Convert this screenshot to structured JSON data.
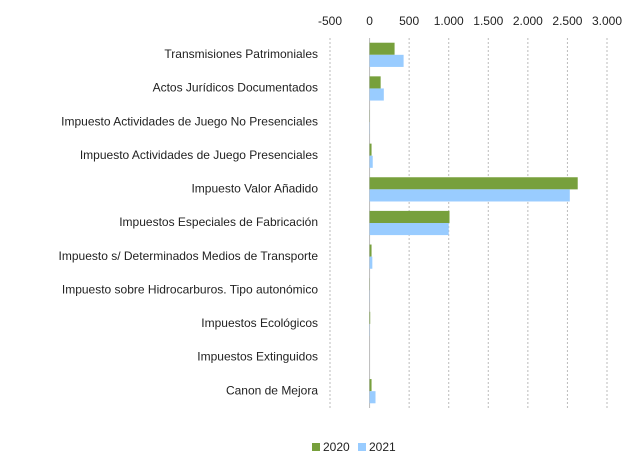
{
  "chart_data": {
    "type": "hbar",
    "categories": [
      "Transmisiones Patrimoniales",
      "Actos Jurídicos Documentados",
      "Impuesto Actividades de Juego No Presenciales",
      "Impuesto Actividades de Juego Presenciales",
      "Impuesto Valor Añadido",
      "Impuestos Especiales de Fabricación",
      "Impuesto s/ Determinados Medios de Transporte",
      "Impuesto sobre Hidrocarburos. Tipo autonómico",
      "Impuestos Ecológicos",
      "Impuestos Extinguidos",
      "Canon de Mejora"
    ],
    "series": [
      {
        "name": "2020",
        "color": "#77a03c",
        "values": [
          316,
          140,
          2,
          25,
          2630,
          1010,
          25,
          2,
          8,
          0,
          25
        ]
      },
      {
        "name": "2021",
        "color": "#99ccff",
        "values": [
          430,
          180,
          3,
          40,
          2530,
          1000,
          35,
          2,
          3,
          0,
          75
        ]
      }
    ],
    "xlim": [
      -500,
      3000
    ],
    "xticks": [
      -500,
      0,
      500,
      {
        "value": 1000,
        "label": "1.000"
      },
      {
        "value": 1500,
        "label": "1.500"
      },
      {
        "value": 2000,
        "label": "2.000"
      },
      {
        "value": 2500,
        "label": "2.500"
      },
      {
        "value": 3000,
        "label": "3.000"
      }
    ],
    "grid": true,
    "legend": "bottom"
  }
}
